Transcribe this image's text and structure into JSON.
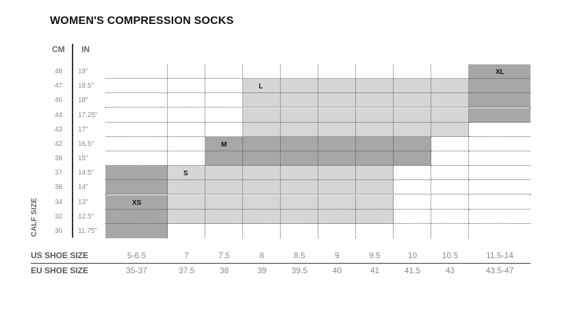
{
  "chart_data": {
    "type": "table",
    "title": "WOMEN'S COMPRESSION SOCKS",
    "ylabel": "CALF SIZE",
    "column_headers": {
      "cm": "CM",
      "in": "IN"
    },
    "calf_cm": [
      "48",
      "47",
      "46",
      "44",
      "43",
      "42",
      "38",
      "37",
      "36",
      "34",
      "32",
      "30"
    ],
    "calf_in": [
      "19\"",
      "18.5\"",
      "18\"",
      "17.25\"",
      "17\"",
      "16.5\"",
      "15\"",
      "14.5\"",
      "14\"",
      "13\"",
      "12.5\"",
      "11.75\""
    ],
    "us_label": "US SHOE SIZE",
    "eu_label": "EU SHOE SIZE",
    "us_sizes": [
      "5-6.5",
      "7",
      "7.5",
      "8",
      "8.5",
      "9",
      "9.5",
      "10",
      "10.5",
      "11.5-14"
    ],
    "eu_sizes": [
      "35-37",
      "37.5",
      "38",
      "39",
      "39.5",
      "40",
      "41",
      "41.5",
      "43",
      "43.5-47"
    ],
    "sizes": [
      {
        "name": "XS",
        "shoe_cols": [
          0,
          0
        ],
        "calf_rows": [
          7,
          11
        ],
        "shade": "dark"
      },
      {
        "name": "S",
        "shoe_cols": [
          1,
          6
        ],
        "calf_rows": [
          7,
          10
        ],
        "shade": "light"
      },
      {
        "name": "M",
        "shoe_cols": [
          2,
          7
        ],
        "calf_rows": [
          5,
          6
        ],
        "shade": "dark"
      },
      {
        "name": "L",
        "shoe_cols": [
          3,
          8
        ],
        "calf_rows": [
          1,
          4
        ],
        "shade": "light"
      },
      {
        "name": "XL",
        "shoe_cols": [
          9,
          9
        ],
        "calf_rows": [
          0,
          3
        ],
        "shade": "dark"
      }
    ],
    "colors": {
      "dark": "#a7a6a8",
      "light": "#d6d6d6",
      "empty": "#ffffff"
    }
  }
}
